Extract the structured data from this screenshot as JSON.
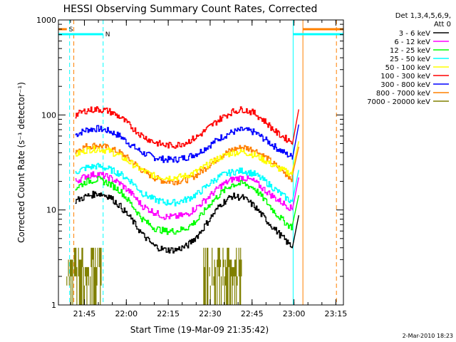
{
  "chart_data": {
    "type": "line",
    "title": "HESSI Observing Summary Count Rates, Corrected",
    "xlabel": "Start Time (19-Mar-09 21:35:42)",
    "ylabel": "Corrected Count Rate (s⁻¹ detector⁻¹)",
    "yscale": "log",
    "ylim": [
      1,
      1000
    ],
    "xlim_minutes": [
      0,
      102
    ],
    "x_ticks": [
      "21:45",
      "22:00",
      "22:15",
      "22:30",
      "22:45",
      "23:00",
      "23:15"
    ],
    "y_ticks": [
      "1",
      "10",
      "100",
      "1000"
    ],
    "legend_header": [
      "Det 1,3,4,5,6,9,",
      "Att 0"
    ],
    "legend_placement": "right",
    "footer": "2-Mar-2010 18:23",
    "flags": [
      {
        "label": "S",
        "color": "#ff8000",
        "segments": [
          [
            0,
            3
          ],
          [
            87.5,
            102
          ]
        ]
      },
      {
        "label": "N",
        "color": "#00ffff",
        "segments": [
          [
            0,
            16
          ],
          [
            84,
            102
          ]
        ]
      }
    ],
    "markers": [
      {
        "x": 4,
        "color": "#00ffff",
        "style": "dashed"
      },
      {
        "x": 5.5,
        "color": "#ff8000",
        "style": "dashed"
      },
      {
        "x": 16,
        "color": "#00ffff",
        "style": "dashed"
      },
      {
        "x": 84,
        "color": "#00ffff",
        "style": "solid"
      },
      {
        "x": 87.5,
        "color": "#ff8000",
        "style": "solid"
      },
      {
        "x": 99.5,
        "color": "#ff8000",
        "style": "dashed"
      }
    ],
    "x_minutes": [
      6,
      10,
      14,
      18,
      22,
      26,
      30,
      34,
      38,
      42,
      46,
      50,
      54,
      58,
      62,
      66,
      70,
      74,
      78,
      82,
      84
    ],
    "series": [
      {
        "name": "3 - 6 keV",
        "color": "#000000",
        "values": [
          12.5,
          14,
          15,
          14,
          11,
          8,
          5.5,
          4.2,
          3.8,
          3.8,
          4.2,
          5.5,
          8,
          11.5,
          14,
          13.5,
          11,
          8,
          6,
          4.5,
          4
        ]
      },
      {
        "name": "6 - 12 keV",
        "color": "#ff00ff",
        "values": [
          20,
          23,
          24,
          22,
          19,
          15,
          11,
          9.5,
          8.5,
          8.5,
          9,
          11,
          14,
          18,
          21,
          22,
          20,
          16,
          13,
          11,
          10
        ]
      },
      {
        "name": "12 - 25 keV",
        "color": "#00ff00",
        "values": [
          17,
          20,
          21,
          19,
          16,
          11.5,
          8,
          6.5,
          6,
          6,
          6.5,
          8,
          11.5,
          15,
          18.5,
          19,
          17,
          12.5,
          9,
          7,
          6.5
        ]
      },
      {
        "name": "25 - 50 keV",
        "color": "#00ffff",
        "values": [
          25,
          28,
          29,
          27,
          24,
          20,
          15,
          13,
          12,
          12,
          13,
          15,
          19,
          23,
          25,
          26,
          24,
          20,
          16,
          13,
          12
        ]
      },
      {
        "name": "50 - 100 keV",
        "color": "#ffff00",
        "values": [
          38,
          43,
          44,
          42,
          37,
          31,
          26,
          23,
          22,
          22,
          23,
          26,
          31,
          36,
          40,
          41,
          38,
          33,
          28,
          25,
          24
        ]
      },
      {
        "name": "100 - 300 keV",
        "color": "#ff0000",
        "values": [
          100,
          112,
          115,
          110,
          95,
          75,
          60,
          52,
          48,
          48,
          52,
          60,
          75,
          92,
          108,
          115,
          105,
          85,
          65,
          55,
          52
        ]
      },
      {
        "name": "300 - 800 keV",
        "color": "#0000ff",
        "values": [
          62,
          70,
          72,
          68,
          60,
          48,
          40,
          36,
          34,
          34,
          36,
          40,
          48,
          58,
          66,
          70,
          66,
          55,
          45,
          38,
          36
        ]
      },
      {
        "name": "800 - 7000 keV",
        "color": "#ff8000",
        "values": [
          42,
          47,
          48,
          45,
          40,
          33,
          26,
          22,
          20,
          20,
          21,
          24,
          30,
          37,
          43,
          46,
          43,
          36,
          29,
          23,
          21
        ]
      },
      {
        "name": "7000 - 20000 keV",
        "color": "#808000",
        "values": []
      }
    ],
    "bursts": [
      {
        "color": "#808000",
        "start": 3,
        "end": 16,
        "levels": [
          4,
          3,
          2.5,
          2,
          1.6
        ]
      },
      {
        "color": "#808000",
        "start": 52,
        "end": 66,
        "levels": [
          4,
          3,
          2.5,
          2,
          1.6
        ]
      }
    ]
  }
}
